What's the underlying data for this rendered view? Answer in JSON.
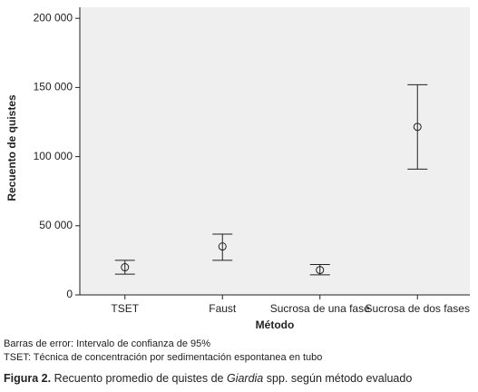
{
  "chart_data": {
    "type": "errorbar",
    "y_label": "Recuento de quistes",
    "x_label": "Método",
    "categories": [
      "TSET",
      "Faust",
      "Sucrosa de una fase",
      "Sucrosa de dos fases"
    ],
    "series": [
      {
        "color": "#222222",
        "values": [
          20000,
          35000,
          18000,
          121500
        ],
        "lower": [
          15000,
          25000,
          14500,
          91000
        ],
        "upper": [
          25000,
          44000,
          22000,
          152000
        ]
      }
    ],
    "ylim": [
      0,
      208000
    ],
    "yticks": [
      0,
      {
        "value": 50000,
        "label": "50 000"
      },
      {
        "value": 100000,
        "label": "100 000"
      },
      {
        "value": 150000,
        "label": "150 000"
      },
      {
        "value": 200000,
        "label": "200 000"
      }
    ],
    "background": "#efefef"
  },
  "notes": [
    "Barras de error: Intervalo de confianza de 95%",
    "TSET: Técnica de concentración por sedimentación espontanea en tubo"
  ],
  "caption": [
    "Figura 2.",
    " Recuento promedio de quistes de ",
    "Giardia",
    " spp. según método evaluado"
  ]
}
